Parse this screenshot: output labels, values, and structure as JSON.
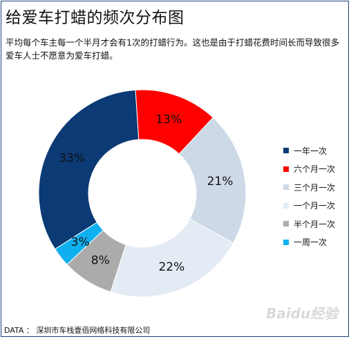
{
  "title": "给爱车打蜡的频次分布图",
  "subtitle": "平均每个车主每一个半月才会有1次的打蜡行为。这也是由于打蜡花费时间长而导致很多爱车人士不愿意为爱车打蜡。",
  "source": "DATA ： 深圳市车栈壹佰网络科技有限公司",
  "watermark": "Baidu经验",
  "chart_data": {
    "type": "pie",
    "categories": [
      "一年一次",
      "六个月一次",
      "三个月一次",
      "一个月一次",
      "半个月一次",
      "一周一次"
    ],
    "values": [
      33,
      13,
      21,
      22,
      8,
      3
    ],
    "value_labels": [
      "33%",
      "13%",
      "21%",
      "22%",
      "8%",
      "3%"
    ],
    "colors": [
      "#0b3a75",
      "#ff0000",
      "#cdd9e6",
      "#e3ebf4",
      "#ababab",
      "#0fb0f0"
    ],
    "donut": true,
    "legend_position": "right"
  }
}
